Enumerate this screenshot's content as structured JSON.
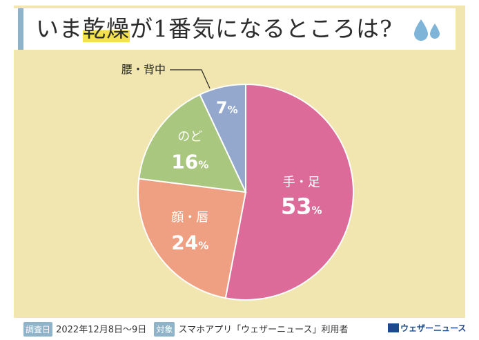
{
  "title": {
    "pre": "いま",
    "highlight": "乾燥",
    "post": "が1番気になるところは?"
  },
  "chart_data": {
    "type": "pie",
    "unit": "%",
    "slices": [
      {
        "label": "手・足",
        "value": 53,
        "color": "#dc6b9a"
      },
      {
        "label": "顔・唇",
        "value": 24,
        "color": "#f0a082"
      },
      {
        "label": "のど",
        "value": 16,
        "color": "#a9c77e"
      },
      {
        "label": "腰・背中",
        "value": 7,
        "color": "#93a8cc"
      }
    ]
  },
  "footer": {
    "survey_date_tag": "調査日",
    "survey_date": "2022年12月8日〜9日",
    "target_tag": "対象",
    "target": "スマホアプリ「ウェザーニュース」利用者",
    "logo_text": "ウェザーニュース",
    "tag_color": "#8fb3c9"
  }
}
